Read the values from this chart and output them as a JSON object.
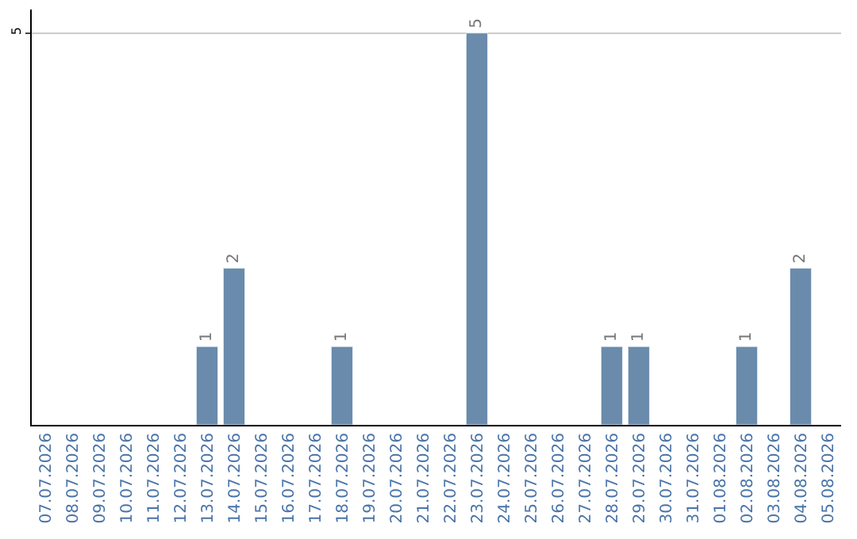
{
  "chart_data": {
    "type": "bar",
    "categories": [
      "07.07.2026",
      "08.07.2026",
      "09.07.2026",
      "10.07.2026",
      "11.07.2026",
      "12.07.2026",
      "13.07.2026",
      "14.07.2026",
      "15.07.2026",
      "16.07.2026",
      "17.07.2026",
      "18.07.2026",
      "19.07.2026",
      "20.07.2026",
      "21.07.2026",
      "22.07.2026",
      "23.07.2026",
      "24.07.2026",
      "25.07.2026",
      "26.07.2026",
      "27.07.2026",
      "28.07.2026",
      "29.07.2026",
      "30.07.2026",
      "31.07.2026",
      "01.08.2026",
      "02.08.2026",
      "03.08.2026",
      "04.08.2026",
      "05.08.2026"
    ],
    "values": [
      null,
      null,
      null,
      null,
      null,
      null,
      1,
      2,
      null,
      null,
      null,
      1,
      null,
      null,
      null,
      null,
      5,
      null,
      null,
      null,
      null,
      1,
      1,
      null,
      null,
      null,
      1,
      null,
      2,
      null
    ],
    "color": "#6a8bab",
    "ylim": [
      0,
      5.3
    ],
    "yticks": [
      5
    ],
    "grid": "y",
    "data_labels": true
  }
}
